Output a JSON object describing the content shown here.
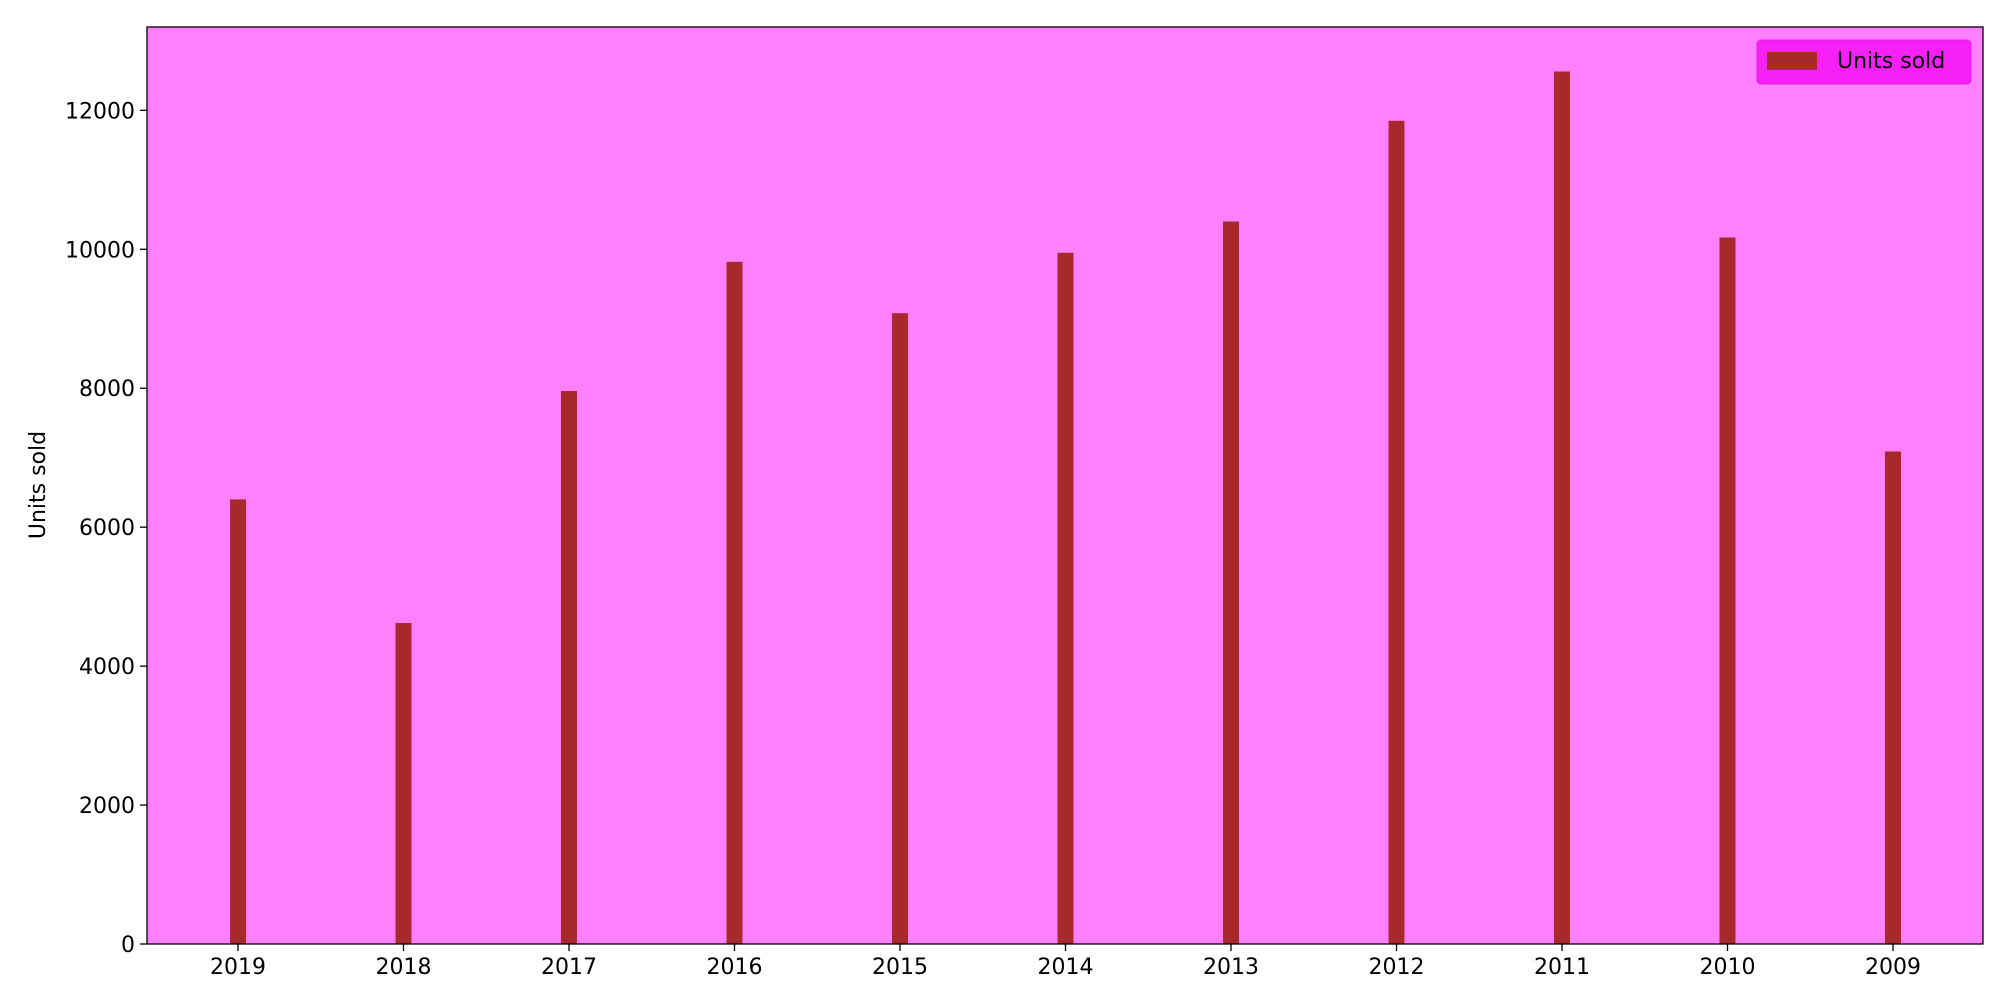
{
  "colors": {
    "plot_background": "#ff80ff",
    "bar": "#a8292c",
    "legend_background": "#f820f8",
    "legend_border": "#e020e0",
    "axis": "#000000"
  },
  "chart_data": {
    "type": "bar",
    "categories": [
      "2019",
      "2018",
      "2017",
      "2016",
      "2015",
      "2014",
      "2013",
      "2012",
      "2011",
      "2010",
      "2009"
    ],
    "series": [
      {
        "name": "Units sold",
        "values": [
          6400,
          4620,
          7960,
          9820,
          9080,
          9950,
          10400,
          11850,
          12560,
          10170,
          7090
        ]
      }
    ],
    "title": "",
    "xlabel": "",
    "ylabel": "Units sold",
    "ylim": [
      0,
      13200
    ],
    "yticks": [
      0,
      2000,
      4000,
      6000,
      8000,
      10000,
      12000
    ],
    "ytick_labels": [
      "0",
      "2000",
      "4000",
      "6000",
      "8000",
      "10000",
      "12000"
    ],
    "grid": false,
    "legend": {
      "placement": "top-right",
      "entries": [
        "Units sold"
      ]
    }
  }
}
